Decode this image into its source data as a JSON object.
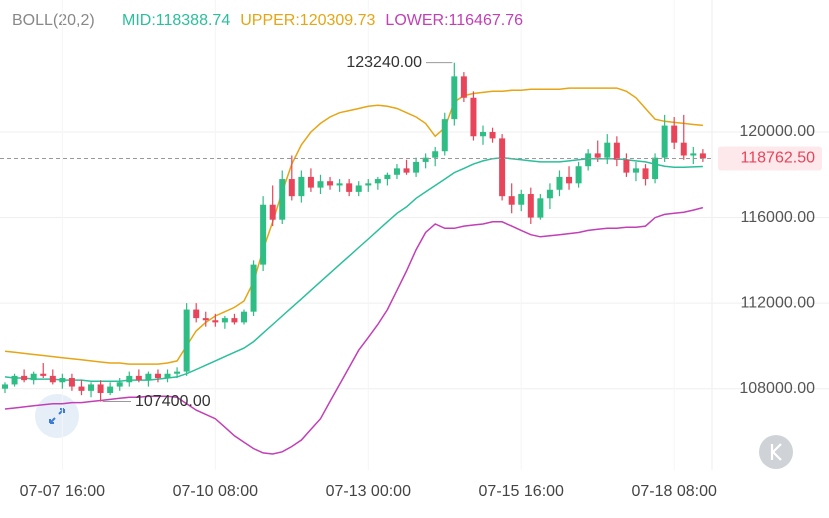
{
  "chart_data": {
    "type": "candlestick",
    "indicator": "BOLL(20,2)",
    "categories": [
      null,
      null,
      null,
      null,
      null,
      null,
      "07-07 16:00",
      null,
      null,
      null,
      null,
      null,
      null,
      null,
      null,
      null,
      null,
      null,
      null,
      null,
      null,
      null,
      "07-10 08:00",
      null,
      null,
      null,
      null,
      null,
      null,
      null,
      null,
      null,
      null,
      null,
      null,
      null,
      null,
      null,
      "07-13 00:00",
      null,
      null,
      null,
      null,
      null,
      null,
      null,
      null,
      null,
      null,
      null,
      null,
      null,
      null,
      null,
      "07-15 16:00",
      null,
      null,
      null,
      null,
      null,
      null,
      null,
      null,
      null,
      null,
      null,
      null,
      null,
      null,
      null,
      "07-18 08:00",
      null,
      null,
      null
    ],
    "open": [
      108000,
      108200,
      108600,
      108400,
      108700,
      108600,
      108300,
      108500,
      108100,
      107900,
      108200,
      107800,
      108100,
      108300,
      108600,
      108400,
      108700,
      108500,
      108700,
      108800,
      111700,
      111300,
      111200,
      111100,
      111300,
      111100,
      111600,
      113800,
      116600,
      115900,
      117800,
      117000,
      117900,
      117400,
      117700,
      117500,
      117600,
      117200,
      117500,
      117600,
      117800,
      118000,
      118300,
      118100,
      118600,
      118800,
      119100,
      120600,
      122600,
      121600,
      119800,
      120000,
      119700,
      117000,
      116600,
      117100,
      116000,
      116900,
      117300,
      117900,
      117600,
      118400,
      119000,
      118800,
      119500,
      118700,
      118100,
      118300,
      117800,
      118800,
      120300,
      119500,
      118900,
      119000
    ],
    "high": [
      108300,
      108700,
      108900,
      108800,
      109200,
      108900,
      108700,
      108700,
      108400,
      108300,
      108400,
      108300,
      108500,
      108800,
      108900,
      108800,
      108900,
      108900,
      109000,
      112000,
      112000,
      111600,
      111500,
      111400,
      111500,
      111700,
      114000,
      117000,
      117500,
      118200,
      118900,
      118200,
      118300,
      118000,
      117900,
      117800,
      117800,
      117700,
      117800,
      117900,
      118100,
      118500,
      118700,
      118800,
      119000,
      119300,
      120900,
      123240,
      122800,
      121900,
      120300,
      120200,
      119900,
      117600,
      117300,
      117400,
      117100,
      117600,
      118200,
      118400,
      118600,
      119200,
      119600,
      119900,
      119800,
      119000,
      118600,
      118500,
      119000,
      120800,
      120700,
      120800,
      119300,
      119200
    ],
    "low": [
      107800,
      108100,
      108300,
      108200,
      108500,
      108200,
      108000,
      107900,
      107700,
      107600,
      107400,
      107700,
      107900,
      108100,
      108300,
      108100,
      108300,
      108300,
      108500,
      108600,
      111100,
      110900,
      110900,
      110800,
      111000,
      111000,
      111400,
      113500,
      115600,
      115700,
      116800,
      116700,
      117200,
      117100,
      117300,
      117200,
      117000,
      117000,
      117200,
      117300,
      117500,
      117800,
      118000,
      117900,
      118300,
      118400,
      118900,
      120300,
      121400,
      119600,
      119400,
      119500,
      116800,
      116200,
      116300,
      115700,
      115900,
      116400,
      117000,
      117300,
      117400,
      118200,
      118600,
      118500,
      118400,
      117900,
      117700,
      117500,
      117600,
      118600,
      119200,
      118700,
      118500,
      118600
    ],
    "close": [
      108200,
      108600,
      108400,
      108700,
      108600,
      108300,
      108500,
      108100,
      107900,
      108200,
      107800,
      108100,
      108300,
      108600,
      108400,
      108700,
      108500,
      108700,
      108800,
      111700,
      111300,
      111200,
      111100,
      111300,
      111100,
      111600,
      113800,
      116600,
      115900,
      117800,
      117000,
      117900,
      117400,
      117700,
      117500,
      117600,
      117200,
      117500,
      117600,
      117800,
      118000,
      118300,
      118100,
      118600,
      118800,
      119100,
      120600,
      122600,
      121600,
      119800,
      120000,
      119700,
      117000,
      116600,
      117100,
      116000,
      116900,
      117300,
      117900,
      117600,
      118400,
      119000,
      118800,
      119500,
      118700,
      118100,
      118300,
      117800,
      118800,
      120300,
      119500,
      118900,
      119000,
      118762.5
    ],
    "up_color": "#2ebd85",
    "down_color": "#e8455a",
    "series": [
      {
        "name": "MID:118388.74",
        "color": "#2bbf9b",
        "values": [
          108550,
          108500,
          108500,
          108450,
          108450,
          108450,
          108400,
          108400,
          108400,
          108350,
          108350,
          108350,
          108350,
          108400,
          108400,
          108400,
          108450,
          108500,
          108550,
          108700,
          108900,
          109100,
          109300,
          109500,
          109700,
          109900,
          110200,
          110600,
          111000,
          111400,
          111800,
          112200,
          112600,
          113000,
          113400,
          113800,
          114200,
          114600,
          115000,
          115400,
          115800,
          116200,
          116500,
          116900,
          117200,
          117500,
          117800,
          118100,
          118300,
          118500,
          118650,
          118750,
          118800,
          118750,
          118700,
          118650,
          118600,
          118600,
          118600,
          118650,
          118700,
          118750,
          118750,
          118750,
          118750,
          118700,
          118650,
          118600,
          118500,
          118400,
          118350,
          118350,
          118370,
          118388.74
        ]
      },
      {
        "name": "UPPER:120309.73",
        "color": "#e6a514",
        "values": [
          109750,
          109700,
          109650,
          109600,
          109550,
          109500,
          109450,
          109400,
          109350,
          109300,
          109250,
          109200,
          109200,
          109150,
          109150,
          109150,
          109150,
          109200,
          109300,
          110000,
          110700,
          111100,
          111400,
          111600,
          111800,
          112100,
          113000,
          114500,
          115800,
          117200,
          118500,
          119400,
          120000,
          120400,
          120700,
          120900,
          121000,
          121100,
          121200,
          121250,
          121200,
          121100,
          120900,
          120700,
          120400,
          119800,
          120200,
          121400,
          121700,
          121800,
          121850,
          121900,
          121900,
          121950,
          121950,
          122000,
          122000,
          122000,
          122000,
          122050,
          122050,
          122050,
          122050,
          122050,
          122050,
          121900,
          121600,
          121100,
          120600,
          120500,
          120450,
          120400,
          120350,
          120309.73
        ]
      },
      {
        "name": "LOWER:116467.76",
        "color": "#c23fb6",
        "values": [
          107050,
          107100,
          107150,
          107200,
          107250,
          107300,
          107300,
          107350,
          107350,
          107400,
          107450,
          107500,
          107550,
          107600,
          107600,
          107650,
          107650,
          107650,
          107600,
          107300,
          107000,
          106800,
          106600,
          106200,
          105800,
          105500,
          105200,
          105000,
          104950,
          105050,
          105300,
          105600,
          106100,
          106600,
          107400,
          108200,
          109000,
          109800,
          110400,
          111000,
          111700,
          112600,
          113500,
          114500,
          115300,
          115700,
          115500,
          115500,
          115600,
          115650,
          115700,
          115800,
          115800,
          115600,
          115400,
          115200,
          115100,
          115150,
          115200,
          115250,
          115300,
          115400,
          115450,
          115500,
          115500,
          115550,
          115550,
          115600,
          116000,
          116150,
          116200,
          116250,
          116350,
          116467.76
        ]
      }
    ],
    "high_annotation": {
      "value": 123240,
      "label": "123240.00"
    },
    "low_annotation": {
      "value": 107400,
      "label": "107400.00"
    },
    "last_price": {
      "value": 118762.5,
      "label": "118762.50"
    },
    "ylim": [
      104200,
      124300
    ],
    "yticks": [
      {
        "value": 108000,
        "label": "108000.00"
      },
      {
        "value": 112000,
        "label": "112000.00"
      },
      {
        "value": 116000,
        "label": "116000.00"
      },
      {
        "value": 120000,
        "label": "120000.00"
      }
    ],
    "grid": true
  }
}
